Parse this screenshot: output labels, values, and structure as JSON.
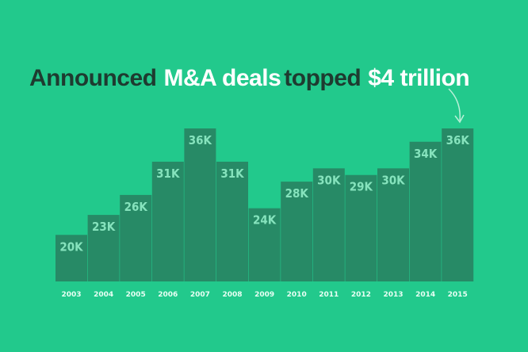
{
  "chart_data": {
    "type": "bar",
    "title": [
      {
        "text": "Announced",
        "color": "#1e3b30"
      },
      {
        "text": "M&A deals",
        "color": "#ffffff"
      },
      {
        "text": "topped",
        "color": "#1e3b30"
      },
      {
        "text": "$4 trillion",
        "color": "#ffffff"
      }
    ],
    "categories": [
      "2003",
      "2004",
      "2005",
      "2006",
      "2007",
      "2008",
      "2009",
      "2010",
      "2011",
      "2012",
      "2013",
      "2014",
      "2015"
    ],
    "values": [
      20000,
      23000,
      26000,
      31000,
      36000,
      31000,
      24000,
      28000,
      30000,
      29000,
      30000,
      34000,
      36000
    ],
    "value_labels": [
      "20K",
      "23K",
      "26K",
      "31K",
      "36K",
      "31K",
      "24K",
      "28K",
      "30K",
      "29K",
      "30K",
      "34K",
      "36K"
    ],
    "color": "#278a66",
    "ylim": [
      13000,
      36000
    ]
  }
}
